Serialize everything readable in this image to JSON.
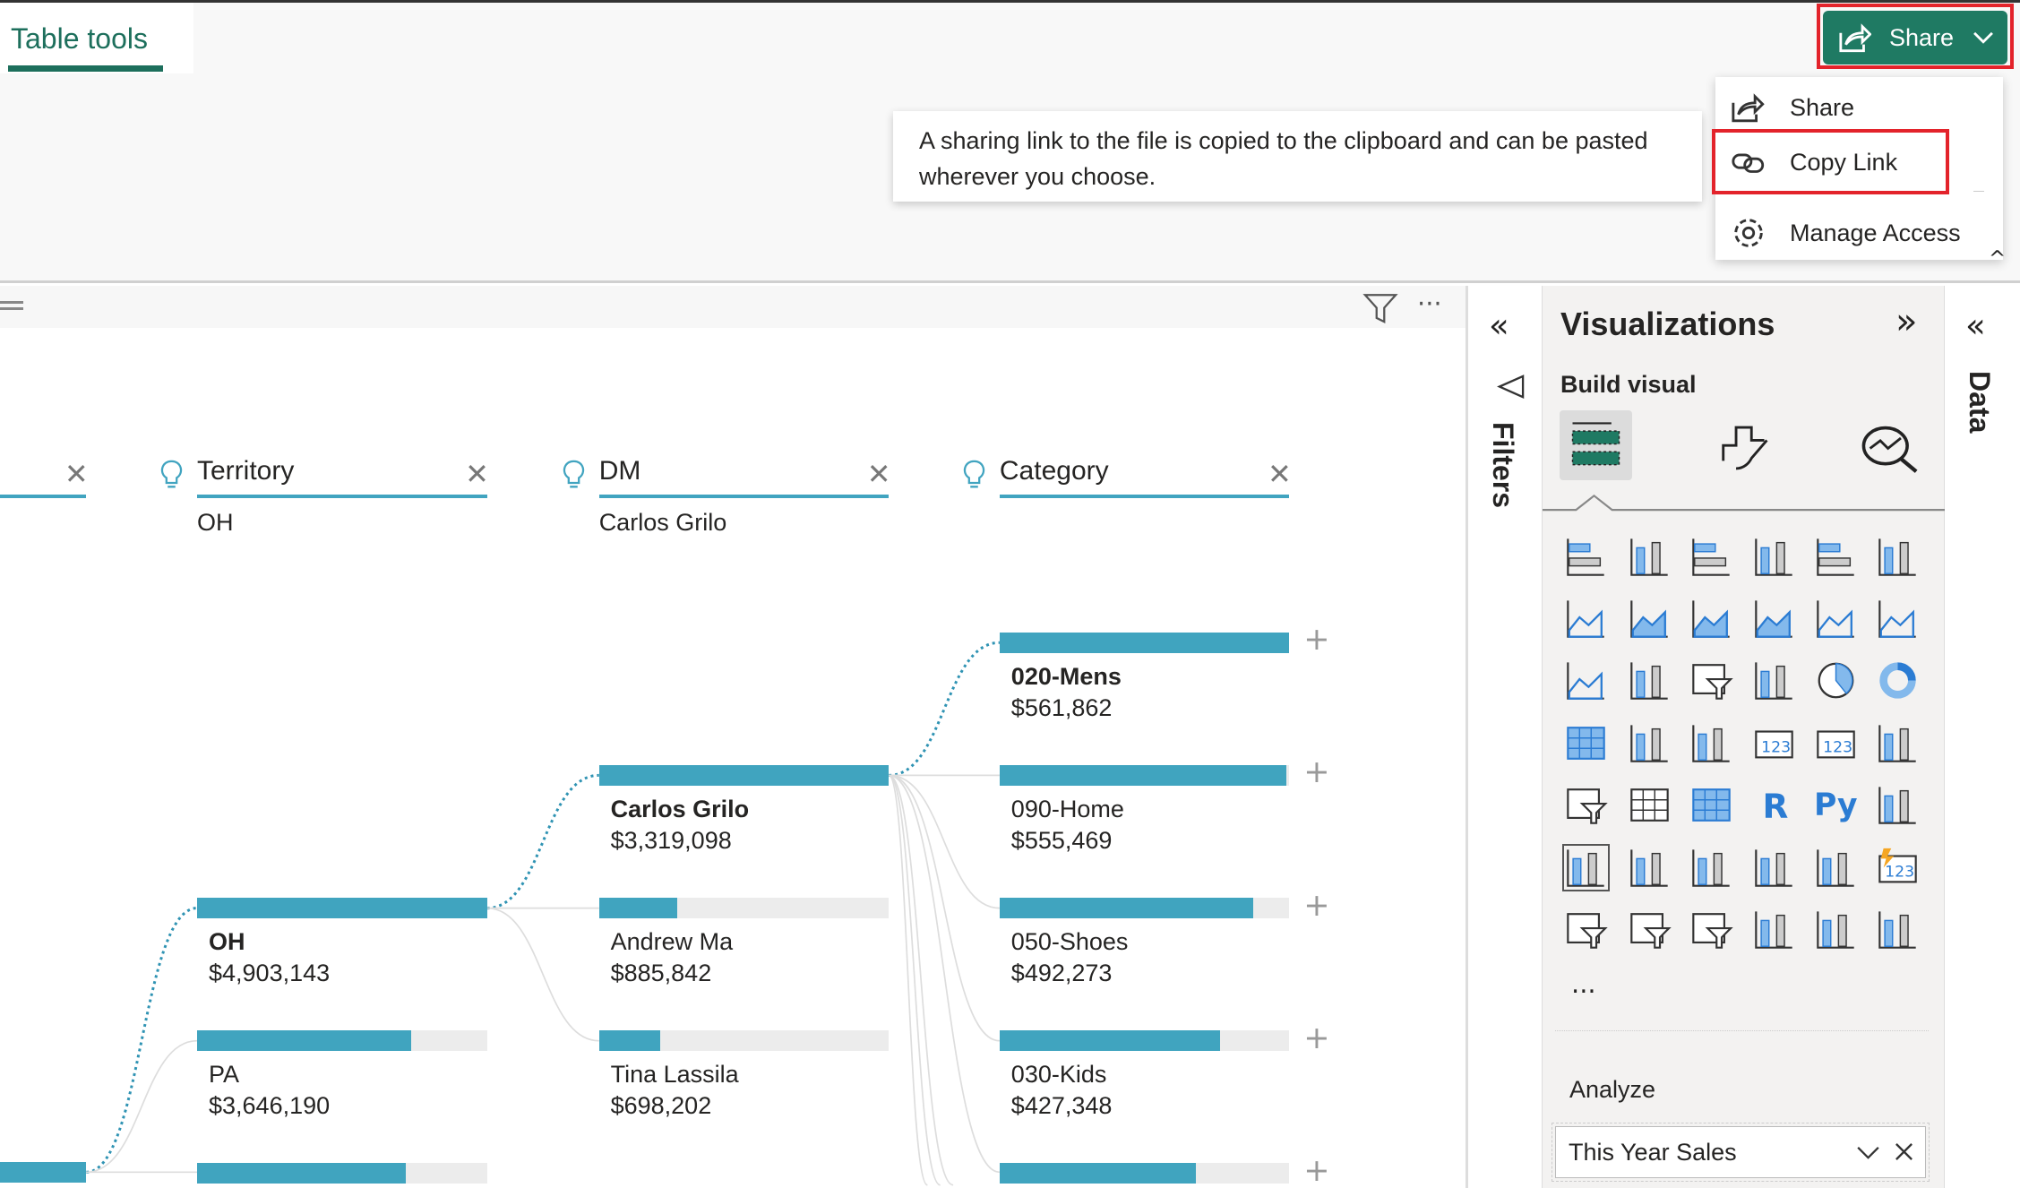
{
  "ribbon": {
    "tab_label": "Table tools",
    "share_button": "Share",
    "menu": [
      {
        "label": "Share",
        "icon": "share-icon"
      },
      {
        "label": "Copy Link",
        "icon": "link-icon"
      },
      {
        "label": "Manage Access",
        "icon": "gear-icon"
      }
    ],
    "tooltip": "A sharing link to the file is copied to the clipboard and can be pasted wherever you choose."
  },
  "colors": {
    "accent": "#1f7a63",
    "bar": "#40a4bf",
    "highlight": "#e3232b"
  },
  "tree": {
    "columns": [
      {
        "title": "Territory",
        "value": "OH"
      },
      {
        "title": "DM",
        "value": "Carlos Grilo"
      },
      {
        "title": "Category",
        "value": ""
      }
    ],
    "territory": [
      {
        "name": "OH",
        "value": "$4,903,143",
        "fraction": 1.0,
        "selected": true
      },
      {
        "name": "PA",
        "value": "$3,646,190",
        "fraction": 0.74
      },
      {
        "name": "",
        "value": "",
        "fraction": 0.72
      }
    ],
    "dm": [
      {
        "name": "Carlos Grilo",
        "value": "$3,319,098",
        "fraction": 1.0,
        "selected": true
      },
      {
        "name": "Andrew Ma",
        "value": "$885,842",
        "fraction": 0.27
      },
      {
        "name": "Tina Lassila",
        "value": "$698,202",
        "fraction": 0.21
      }
    ],
    "category": [
      {
        "name": "020-Mens",
        "value": "$561,862",
        "fraction": 1.0,
        "selected": true
      },
      {
        "name": "090-Home",
        "value": "$555,469",
        "fraction": 0.99
      },
      {
        "name": "050-Shoes",
        "value": "$492,273",
        "fraction": 0.876
      },
      {
        "name": "030-Kids",
        "value": "$427,348",
        "fraction": 0.76
      },
      {
        "name": "",
        "value": "",
        "fraction": 0.676
      }
    ]
  },
  "filters": {
    "label": "Filters"
  },
  "viz": {
    "title": "Visualizations",
    "build_visual": "Build visual",
    "more": "...",
    "analyze": "Analyze",
    "analyze_field": "This Year Sales",
    "icons": [
      "stacked-bar-chart",
      "stacked-column-chart",
      "clustered-bar-chart",
      "clustered-column-chart",
      "100-stacked-bar-chart",
      "100-stacked-column-chart",
      "line-chart",
      "area-chart",
      "stacked-area-chart",
      "100-stacked-area-chart",
      "line-and-stacked-column-chart",
      "line-and-clustered-column-chart",
      "ribbon-chart",
      "waterfall-chart",
      "funnel-chart",
      "scatter-chart",
      "pie-chart",
      "donut-chart",
      "treemap",
      "map-azure",
      "gauge",
      "card",
      "multi-row-card",
      "kpi",
      "slicer",
      "table",
      "matrix",
      "r-visual",
      "python-visual",
      "key-influencers",
      "decomposition-tree",
      "qa-visual",
      "smart-narrative",
      "metrics",
      "paginated-report",
      "card-new",
      "slicer-new",
      "button-slicer",
      "list-slicer",
      "arcgis-map",
      "power-apps",
      "power-automate"
    ]
  },
  "data_pane": {
    "label": "Data"
  }
}
